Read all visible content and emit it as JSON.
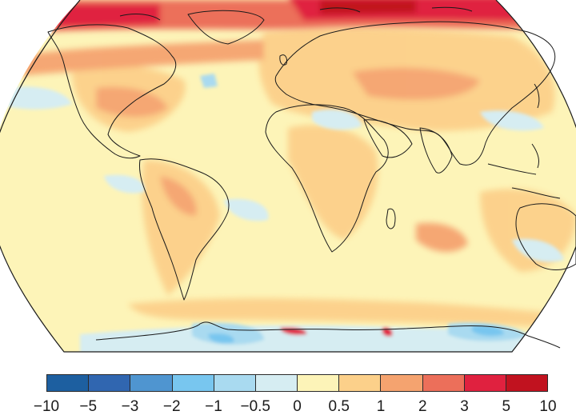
{
  "map": {
    "projection": "Robinson",
    "coastline_color": "#1a1a1a",
    "background_field_color": "#fdf4b8",
    "ocean_outside_color": "#ffffff"
  },
  "colorbar": {
    "bins": [
      {
        "from": "-10",
        "to": "-5",
        "color": "#1d5fa0"
      },
      {
        "from": "-5",
        "to": "-3",
        "color": "#3066b0"
      },
      {
        "from": "-3",
        "to": "-2",
        "color": "#4f95d0"
      },
      {
        "from": "-2",
        "to": "-1",
        "color": "#78c6ef"
      },
      {
        "from": "-1",
        "to": "-0.5",
        "color": "#a9daf0"
      },
      {
        "from": "-0.5",
        "to": "0",
        "color": "#d6edf2"
      },
      {
        "from": "0",
        "to": "0.5",
        "color": "#fdf4b8"
      },
      {
        "from": "0.5",
        "to": "1",
        "color": "#fcd08a"
      },
      {
        "from": "1",
        "to": "2",
        "color": "#f5a36f"
      },
      {
        "from": "2",
        "to": "3",
        "color": "#ec6f5a"
      },
      {
        "from": "3",
        "to": "5",
        "color": "#e0213f"
      },
      {
        "from": "5",
        "to": "10",
        "color": "#c1121f"
      }
    ],
    "tick_labels": [
      "−10",
      "−5",
      "−3",
      "−2",
      "−1",
      "−0.5",
      "0",
      "0.5",
      "1",
      "2",
      "3",
      "5",
      "10"
    ]
  }
}
